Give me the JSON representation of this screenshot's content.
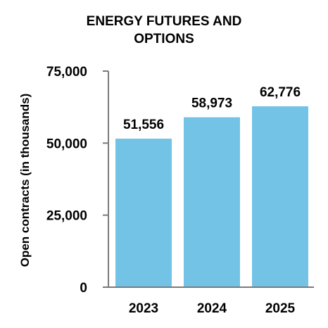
{
  "chart_data": {
    "type": "bar",
    "title_lines": [
      "ENERGY FUTURES AND",
      "OPTIONS"
    ],
    "ylabel": "Open contracts (in thousands)",
    "xlabel": "",
    "categories": [
      "2023",
      "2024",
      "2025"
    ],
    "values": [
      51556,
      58973,
      62776
    ],
    "data_labels": [
      "51,556",
      "58,973",
      "62,776"
    ],
    "yticks": [
      0,
      25000,
      50000,
      75000
    ],
    "ytick_labels": [
      "0",
      "25,000",
      "50,000",
      "75,000"
    ],
    "ylim": [
      0,
      75000
    ],
    "grid": false,
    "legend": "none",
    "bar_color": "#73c3e6",
    "axis_color": "#7a7a7a"
  }
}
